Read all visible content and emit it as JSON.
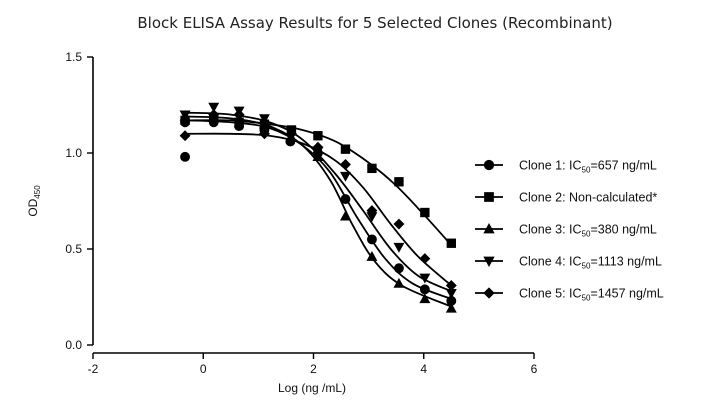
{
  "chart_data": {
    "type": "scatter",
    "title": "Block ELISA Assay Results for 5 Selected Clones (Recombinant)",
    "xlabel": "Log (ng /mL)",
    "ylabel": {
      "main": "OD",
      "sub": "450"
    },
    "xlim": [
      -2,
      6
    ],
    "ylim": [
      0,
      1.5
    ],
    "x_ticks": [
      -2,
      0,
      2,
      4,
      6
    ],
    "y_ticks": [
      0.0,
      0.5,
      1.0,
      1.5
    ],
    "x_tick_labels": [
      "-2",
      "0",
      "2",
      "4",
      "6"
    ],
    "y_tick_labels": [
      "0.0",
      "0.5",
      "1.0",
      "1.5"
    ],
    "grid": false,
    "legend_position": "right",
    "color": "#000000",
    "series": [
      {
        "legend": {
          "prefix": "Clone 1: IC",
          "sub": "50",
          "suffix": "=657 ng/mL"
        },
        "marker": "circle",
        "points": [
          {
            "x": -0.33,
            "y": 0.98
          },
          {
            "x": -0.33,
            "y": 1.16
          },
          {
            "x": 0.19,
            "y": 1.16
          },
          {
            "x": 0.65,
            "y": 1.14
          },
          {
            "x": 1.11,
            "y": 1.12
          },
          {
            "x": 1.58,
            "y": 1.06
          },
          {
            "x": 2.08,
            "y": 1.0
          },
          {
            "x": 2.58,
            "y": 0.76
          },
          {
            "x": 3.06,
            "y": 0.55
          },
          {
            "x": 3.55,
            "y": 0.4
          },
          {
            "x": 4.02,
            "y": 0.29
          },
          {
            "x": 4.5,
            "y": 0.23
          }
        ],
        "curve": [
          {
            "x": -0.3,
            "y": 1.17
          },
          {
            "x": 0.5,
            "y": 1.16
          },
          {
            "x": 1.2,
            "y": 1.13
          },
          {
            "x": 1.8,
            "y": 1.04
          },
          {
            "x": 2.3,
            "y": 0.9
          },
          {
            "x": 2.8,
            "y": 0.66
          },
          {
            "x": 3.3,
            "y": 0.45
          },
          {
            "x": 3.8,
            "y": 0.32
          },
          {
            "x": 4.5,
            "y": 0.24
          }
        ]
      },
      {
        "legend": {
          "prefix": "Clone 2: Non-calculated*",
          "sub": "",
          "suffix": ""
        },
        "marker": "square",
        "points": [
          {
            "x": -0.33,
            "y": 1.17
          },
          {
            "x": 0.19,
            "y": 1.18
          },
          {
            "x": 0.65,
            "y": 1.16
          },
          {
            "x": 1.11,
            "y": 1.15
          },
          {
            "x": 1.6,
            "y": 1.12
          },
          {
            "x": 2.08,
            "y": 1.09
          },
          {
            "x": 2.58,
            "y": 1.02
          },
          {
            "x": 3.06,
            "y": 0.92
          },
          {
            "x": 3.55,
            "y": 0.85
          },
          {
            "x": 4.02,
            "y": 0.69
          },
          {
            "x": 4.5,
            "y": 0.53
          }
        ],
        "curve": [
          {
            "x": -0.3,
            "y": 1.17
          },
          {
            "x": 0.5,
            "y": 1.17
          },
          {
            "x": 1.2,
            "y": 1.15
          },
          {
            "x": 1.8,
            "y": 1.12
          },
          {
            "x": 2.4,
            "y": 1.06
          },
          {
            "x": 3.0,
            "y": 0.95
          },
          {
            "x": 3.5,
            "y": 0.83
          },
          {
            "x": 4.0,
            "y": 0.68
          },
          {
            "x": 4.5,
            "y": 0.52
          }
        ]
      },
      {
        "legend": {
          "prefix": "Clone 3: IC",
          "sub": "50",
          "suffix": "=380 ng/mL"
        },
        "marker": "triangle-up",
        "points": [
          {
            "x": -0.33,
            "y": 1.19
          },
          {
            "x": 0.19,
            "y": 1.19
          },
          {
            "x": 0.65,
            "y": 1.18
          },
          {
            "x": 1.11,
            "y": 1.15
          },
          {
            "x": 1.6,
            "y": 1.08
          },
          {
            "x": 2.08,
            "y": 0.98
          },
          {
            "x": 2.58,
            "y": 0.67
          },
          {
            "x": 3.06,
            "y": 0.46
          },
          {
            "x": 3.55,
            "y": 0.32
          },
          {
            "x": 4.02,
            "y": 0.24
          },
          {
            "x": 4.5,
            "y": 0.19
          }
        ],
        "curve": [
          {
            "x": -0.3,
            "y": 1.19
          },
          {
            "x": 0.5,
            "y": 1.18
          },
          {
            "x": 1.2,
            "y": 1.14
          },
          {
            "x": 1.8,
            "y": 1.04
          },
          {
            "x": 2.3,
            "y": 0.86
          },
          {
            "x": 2.7,
            "y": 0.63
          },
          {
            "x": 3.1,
            "y": 0.44
          },
          {
            "x": 3.6,
            "y": 0.31
          },
          {
            "x": 4.5,
            "y": 0.2
          }
        ]
      },
      {
        "legend": {
          "prefix": "Clone 4: IC",
          "sub": "50",
          "suffix": "=1113 ng/mL"
        },
        "marker": "triangle-down",
        "points": [
          {
            "x": -0.33,
            "y": 1.2
          },
          {
            "x": 0.19,
            "y": 1.24
          },
          {
            "x": 0.65,
            "y": 1.22
          },
          {
            "x": 1.11,
            "y": 1.18
          },
          {
            "x": 1.6,
            "y": 1.11
          },
          {
            "x": 2.08,
            "y": 1.01
          },
          {
            "x": 2.58,
            "y": 0.88
          },
          {
            "x": 3.06,
            "y": 0.67
          },
          {
            "x": 3.55,
            "y": 0.51
          },
          {
            "x": 4.02,
            "y": 0.35
          },
          {
            "x": 4.5,
            "y": 0.27
          }
        ],
        "curve": [
          {
            "x": -0.3,
            "y": 1.21
          },
          {
            "x": 0.5,
            "y": 1.2
          },
          {
            "x": 1.2,
            "y": 1.16
          },
          {
            "x": 1.8,
            "y": 1.07
          },
          {
            "x": 2.4,
            "y": 0.89
          },
          {
            "x": 2.9,
            "y": 0.7
          },
          {
            "x": 3.4,
            "y": 0.5
          },
          {
            "x": 3.9,
            "y": 0.36
          },
          {
            "x": 4.5,
            "y": 0.28
          }
        ]
      },
      {
        "legend": {
          "prefix": "Clone 5: IC",
          "sub": "50",
          "suffix": "=1457 ng/mL"
        },
        "marker": "diamond",
        "points": [
          {
            "x": -0.33,
            "y": 1.09
          },
          {
            "x": 0.19,
            "y": 1.2
          },
          {
            "x": 0.65,
            "y": 1.2
          },
          {
            "x": 1.11,
            "y": 1.1
          },
          {
            "x": 1.6,
            "y": 1.1
          },
          {
            "x": 2.08,
            "y": 1.03
          },
          {
            "x": 2.58,
            "y": 0.94
          },
          {
            "x": 3.06,
            "y": 0.7
          },
          {
            "x": 3.55,
            "y": 0.63
          },
          {
            "x": 4.02,
            "y": 0.45
          },
          {
            "x": 4.5,
            "y": 0.31
          }
        ],
        "curve": [
          {
            "x": -0.3,
            "y": 1.1
          },
          {
            "x": 0.5,
            "y": 1.1
          },
          {
            "x": 1.2,
            "y": 1.09
          },
          {
            "x": 1.8,
            "y": 1.05
          },
          {
            "x": 2.4,
            "y": 0.96
          },
          {
            "x": 2.9,
            "y": 0.82
          },
          {
            "x": 3.4,
            "y": 0.63
          },
          {
            "x": 3.9,
            "y": 0.46
          },
          {
            "x": 4.5,
            "y": 0.31
          }
        ]
      }
    ]
  }
}
